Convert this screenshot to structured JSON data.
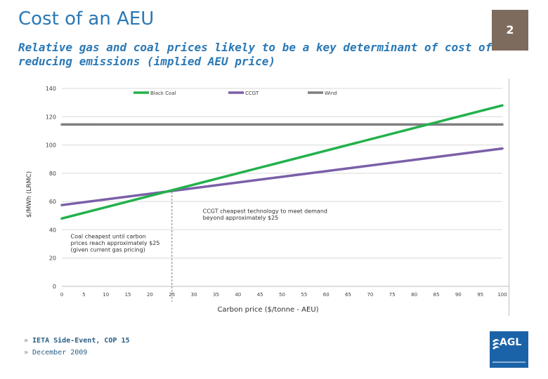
{
  "slide": {
    "title": "Cost of an AEU",
    "page_number": "2",
    "subtitle": "Relative gas and coal prices likely to be a key determinant of cost of reducing emissions (implied AEU price)"
  },
  "footer": {
    "bullet": "»",
    "items": [
      "IETA Side-Event, COP 15",
      "December 2009"
    ]
  },
  "logo": {
    "text": "AGL"
  },
  "colors": {
    "accent": "#2a78b5",
    "black_coal": "#22b14c",
    "ccgt": "#7b5fa8",
    "wind": "#7f7f7f",
    "badge": "#7d6b5e",
    "logo": "#1b63a8"
  },
  "chart_data": {
    "type": "line",
    "title": "",
    "xlabel": "Carbon price ($/tonne - AEU)",
    "ylabel": "$/MWh (LRMC)",
    "x": [
      0,
      5,
      10,
      15,
      20,
      25,
      30,
      35,
      40,
      45,
      50,
      55,
      60,
      65,
      70,
      75,
      80,
      85,
      90,
      95,
      100
    ],
    "x_ticks": [
      "0",
      "5",
      "10",
      "15",
      "20",
      "25",
      "30",
      "35",
      "40",
      "45",
      "50",
      "55",
      "60",
      "65",
      "70",
      "75",
      "80",
      "85",
      "90",
      "95",
      "100"
    ],
    "y_ticks": [
      "0",
      "20",
      "40",
      "60",
      "80",
      "100",
      "120",
      "140"
    ],
    "xlim": [
      0,
      100
    ],
    "ylim": [
      0,
      140
    ],
    "grid": true,
    "legend_position": "top",
    "series": [
      {
        "name": "Black Coal",
        "color": "#22b14c",
        "x": [
          0,
          100
        ],
        "values": [
          48,
          128
        ]
      },
      {
        "name": "CCGT",
        "color": "#7b5fa8",
        "x": [
          0,
          100
        ],
        "values": [
          57.5,
          97.5
        ]
      },
      {
        "name": "Wind",
        "color": "#7f7f7f",
        "x": [
          0,
          100
        ],
        "values": [
          114.5,
          114.5
        ]
      }
    ],
    "annotations": [
      {
        "text": [
          "Coal cheapest until carbon",
          "prices reach approximately $25",
          "(given current gas pricing)"
        ],
        "x": 2,
        "y": 34
      },
      {
        "text": [
          "CCGT cheapest technology to meet demand",
          "beyond approximately $25"
        ],
        "x": 32,
        "y": 52
      }
    ],
    "marker_x": 25
  }
}
